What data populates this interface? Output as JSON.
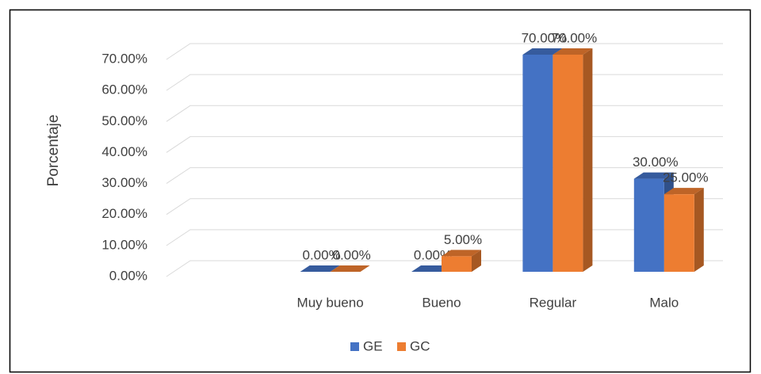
{
  "chart_data": {
    "type": "bar3d",
    "y_label": "Porcentaje",
    "categories": [
      null,
      "Muy bueno",
      "Bueno",
      "Regular",
      "Malo"
    ],
    "series": [
      {
        "name": "GE",
        "color": "#4472c4",
        "values": [
          null,
          0,
          0,
          70,
          30
        ],
        "value_labels": [
          null,
          "0.00%",
          "0.00%",
          "70.00%",
          "30.00%"
        ]
      },
      {
        "name": "GC",
        "color": "#ed7d31",
        "values": [
          null,
          0,
          5,
          70,
          25
        ],
        "value_labels": [
          null,
          "0.00%",
          "5.00%",
          "70.00%",
          "25.00%"
        ]
      }
    ],
    "ylim": [
      0,
      70
    ],
    "yticks": [
      {
        "value": 0,
        "label": "0.00%"
      },
      {
        "value": 10,
        "label": "10.00%"
      },
      {
        "value": 20,
        "label": "20.00%"
      },
      {
        "value": 30,
        "label": "30.00%"
      },
      {
        "value": 40,
        "label": "40.00%"
      },
      {
        "value": 50,
        "label": "50.00%"
      },
      {
        "value": 60,
        "label": "60.00%"
      },
      {
        "value": 70,
        "label": "70.00%"
      }
    ],
    "grid": true,
    "legend": "bottom"
  }
}
